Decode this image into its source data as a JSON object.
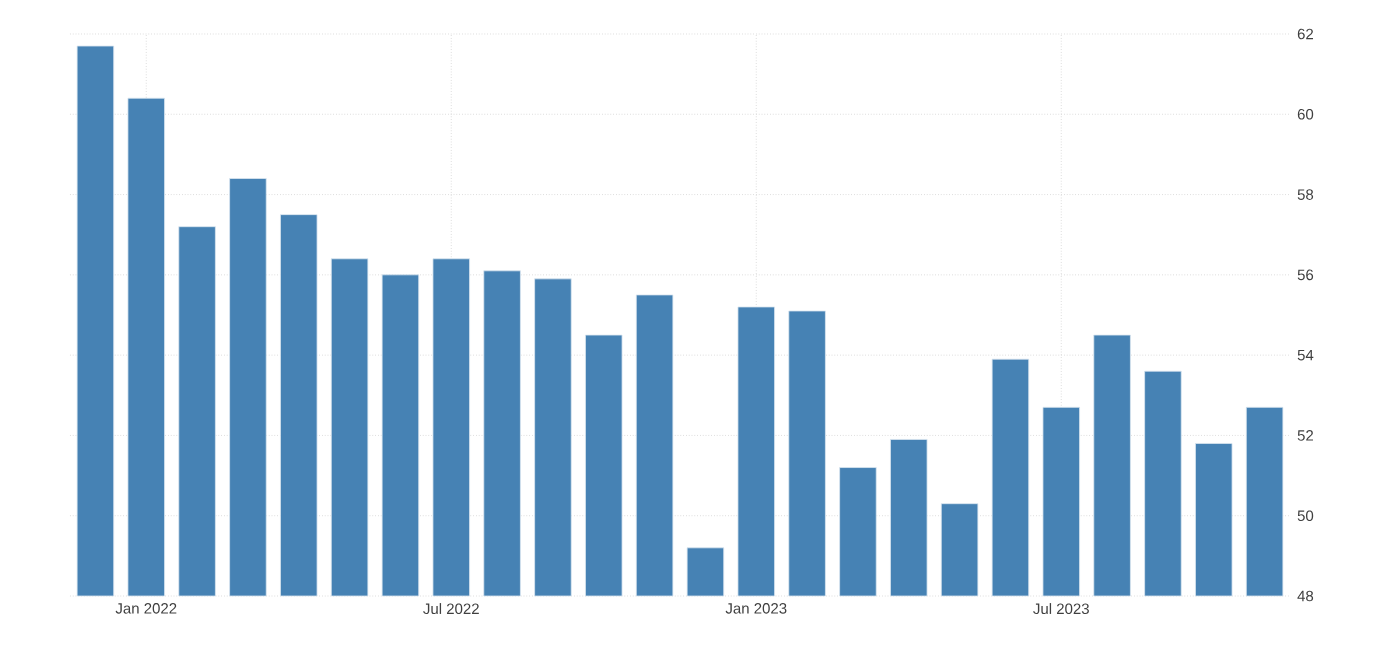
{
  "chart_data": {
    "type": "bar",
    "categories": [
      null,
      "Jan 2022",
      null,
      null,
      null,
      null,
      null,
      "Jul 2022",
      null,
      null,
      null,
      null,
      null,
      "Jan 2023",
      null,
      null,
      null,
      null,
      null,
      "Jul 2023",
      null,
      null,
      null,
      null
    ],
    "values": [
      61.7,
      60.4,
      57.2,
      58.4,
      57.5,
      56.4,
      56.0,
      56.4,
      56.1,
      55.9,
      54.5,
      55.5,
      49.2,
      55.2,
      55.1,
      51.2,
      51.9,
      50.3,
      53.9,
      52.7,
      54.5,
      53.6,
      51.8,
      52.7
    ],
    "color": "#4682b4",
    "ylim": [
      48,
      62
    ],
    "yticks": [
      48,
      50,
      52,
      54,
      56,
      58,
      60,
      62
    ],
    "grid": true
  }
}
